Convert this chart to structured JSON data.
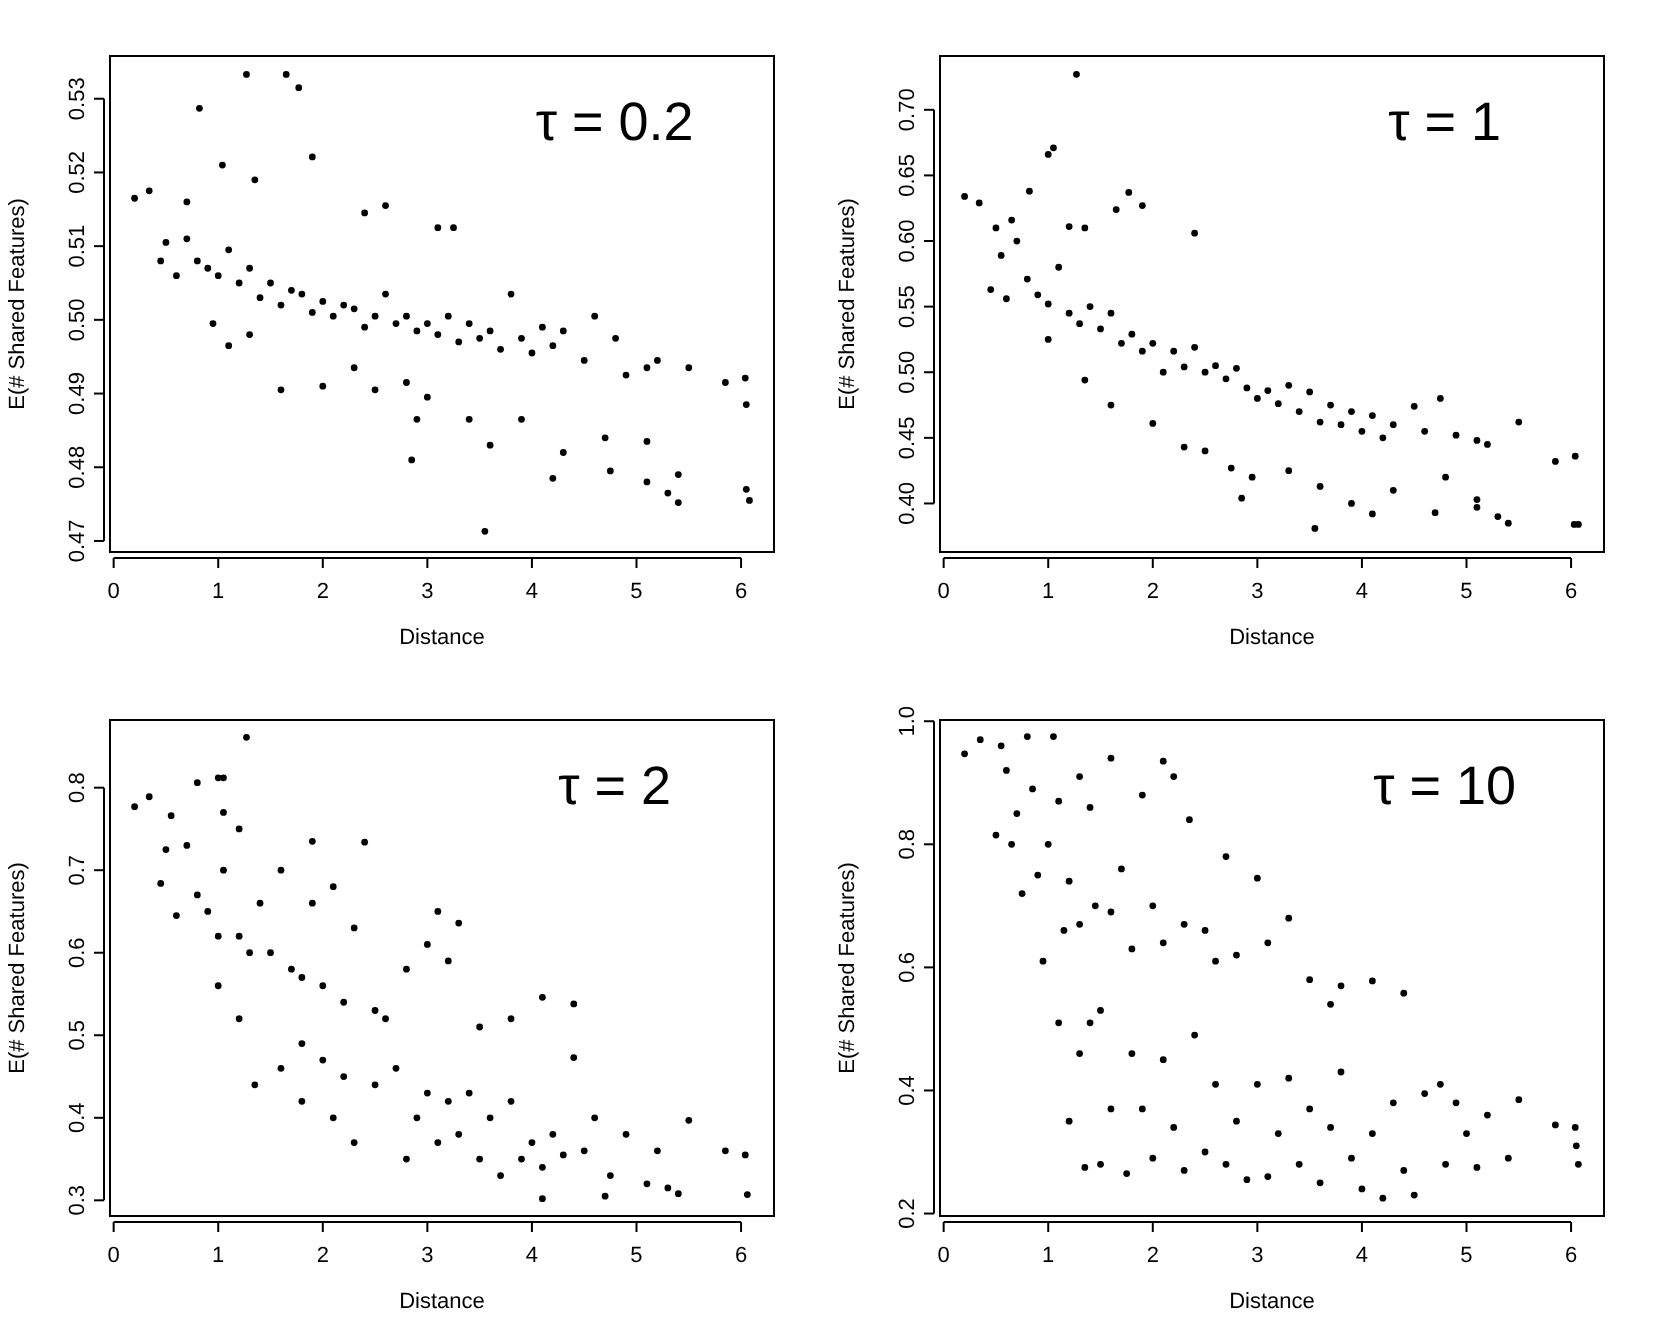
{
  "chart_data": [
    {
      "type": "scatter",
      "title": "τ = 0.2",
      "xlabel": "Distance",
      "ylabel": "E(# Shared Features)",
      "xlim": [
        -0.035,
        6.315
      ],
      "ylim": [
        0.4685,
        0.5358
      ],
      "xticks": [
        0,
        1,
        2,
        3,
        4,
        5,
        6
      ],
      "yticks": [
        {
          "value": 0.47,
          "label": "0.47"
        },
        {
          "value": 0.48,
          "label": "0.48"
        },
        {
          "value": 0.49,
          "label": "0.49"
        },
        {
          "value": 0.5,
          "label": "0.50"
        },
        {
          "value": 0.51,
          "label": "0.51"
        },
        {
          "value": 0.52,
          "label": "0.52"
        },
        {
          "value": 0.53,
          "label": "0.53"
        }
      ],
      "marker": "circle",
      "series": [
        {
          "color": "#000000",
          "x": [
            1.27,
            1.65,
            1.77,
            0.82,
            1.9,
            1.04,
            0.2,
            0.34,
            0.7,
            1.35,
            2.4,
            2.6,
            3.1,
            3.25,
            0.45,
            0.5,
            0.6,
            0.7,
            0.8,
            0.9,
            1.0,
            1.1,
            1.2,
            1.3,
            1.4,
            1.5,
            1.6,
            1.7,
            1.8,
            1.9,
            2.0,
            2.1,
            2.2,
            2.3,
            2.4,
            2.5,
            2.6,
            2.7,
            2.8,
            2.9,
            3.0,
            3.1,
            3.2,
            3.3,
            3.4,
            3.5,
            3.6,
            3.7,
            3.8,
            3.9,
            4.0,
            4.1,
            4.2,
            4.3,
            4.5,
            4.6,
            4.8,
            4.9,
            5.1,
            5.2,
            5.5,
            0.95,
            1.1,
            1.3,
            1.6,
            2.0,
            2.3,
            2.5,
            2.8,
            2.9,
            3.0,
            3.4,
            2.85,
            3.6,
            3.55,
            3.9,
            4.2,
            4.3,
            4.7,
            4.75,
            5.1,
            5.1,
            5.3,
            5.4,
            5.4,
            5.85,
            6.04,
            6.05,
            6.05,
            6.08
          ],
          "values": [
            0.5333,
            0.5333,
            0.5315,
            0.5287,
            0.5221,
            0.521,
            0.5165,
            0.5175,
            0.516,
            0.519,
            0.5145,
            0.5155,
            0.5125,
            0.5125,
            0.508,
            0.5105,
            0.506,
            0.511,
            0.508,
            0.507,
            0.506,
            0.5095,
            0.505,
            0.507,
            0.503,
            0.505,
            0.502,
            0.504,
            0.5035,
            0.501,
            0.5025,
            0.5005,
            0.502,
            0.5015,
            0.499,
            0.5005,
            0.5035,
            0.4995,
            0.5005,
            0.4985,
            0.4995,
            0.498,
            0.5005,
            0.497,
            0.4995,
            0.4975,
            0.4985,
            0.496,
            0.5035,
            0.4975,
            0.4955,
            0.499,
            0.4965,
            0.4985,
            0.4945,
            0.5005,
            0.4975,
            0.4925,
            0.4935,
            0.4945,
            0.4935,
            0.4995,
            0.4965,
            0.498,
            0.4905,
            0.491,
            0.4935,
            0.4905,
            0.4915,
            0.4865,
            0.4895,
            0.4865,
            0.481,
            0.483,
            0.4713,
            0.4865,
            0.4785,
            0.482,
            0.484,
            0.4795,
            0.478,
            0.4835,
            0.4765,
            0.4752,
            0.479,
            0.4915,
            0.4921,
            0.4885,
            0.477,
            0.4755
          ]
        }
      ]
    },
    {
      "type": "scatter",
      "title": "τ = 1",
      "xlabel": "Distance",
      "ylabel": "E(# Shared Features)",
      "xlim": [
        -0.035,
        6.315
      ],
      "ylim": [
        0.363,
        0.741
      ],
      "xticks": [
        0,
        1,
        2,
        3,
        4,
        5,
        6
      ],
      "yticks": [
        {
          "value": 0.4,
          "label": "0.40"
        },
        {
          "value": 0.45,
          "label": "0.45"
        },
        {
          "value": 0.5,
          "label": "0.50"
        },
        {
          "value": 0.55,
          "label": "0.55"
        },
        {
          "value": 0.6,
          "label": "0.60"
        },
        {
          "value": 0.65,
          "label": "0.65"
        },
        {
          "value": 0.7,
          "label": "0.70"
        }
      ],
      "marker": "circle",
      "series": [
        {
          "color": "#000000",
          "x": [
            1.27,
            1.0,
            1.05,
            0.2,
            0.34,
            0.82,
            1.65,
            1.77,
            1.9,
            2.4,
            1.2,
            1.35,
            0.45,
            0.5,
            0.55,
            0.6,
            0.65,
            0.7,
            0.8,
            0.9,
            1.0,
            1.0,
            1.1,
            1.2,
            1.3,
            1.4,
            1.5,
            1.6,
            1.7,
            1.8,
            1.9,
            2.0,
            2.1,
            2.2,
            2.3,
            2.4,
            2.5,
            2.6,
            2.7,
            2.8,
            2.9,
            3.0,
            3.1,
            3.2,
            3.3,
            3.4,
            3.5,
            3.6,
            3.7,
            3.8,
            3.9,
            4.0,
            4.1,
            4.2,
            4.3,
            4.5,
            4.6,
            4.75,
            4.9,
            5.1,
            5.2,
            5.5,
            1.35,
            1.6,
            2.0,
            2.3,
            2.5,
            2.75,
            2.85,
            2.95,
            3.3,
            3.6,
            3.55,
            3.9,
            4.1,
            4.3,
            4.7,
            4.8,
            5.1,
            5.1,
            5.3,
            5.4,
            5.85,
            6.04,
            6.03,
            6.07
          ],
          "values": [
            0.727,
            0.666,
            0.671,
            0.634,
            0.629,
            0.638,
            0.624,
            0.637,
            0.627,
            0.606,
            0.611,
            0.61,
            0.563,
            0.61,
            0.589,
            0.556,
            0.616,
            0.6,
            0.571,
            0.559,
            0.552,
            0.525,
            0.58,
            0.545,
            0.537,
            0.55,
            0.533,
            0.545,
            0.522,
            0.529,
            0.516,
            0.522,
            0.5,
            0.516,
            0.504,
            0.519,
            0.5,
            0.505,
            0.495,
            0.503,
            0.488,
            0.48,
            0.486,
            0.476,
            0.49,
            0.47,
            0.485,
            0.462,
            0.475,
            0.46,
            0.47,
            0.455,
            0.467,
            0.45,
            0.46,
            0.474,
            0.455,
            0.48,
            0.452,
            0.448,
            0.445,
            0.462,
            0.494,
            0.475,
            0.461,
            0.443,
            0.44,
            0.427,
            0.404,
            0.42,
            0.425,
            0.413,
            0.381,
            0.4,
            0.392,
            0.41,
            0.393,
            0.42,
            0.403,
            0.397,
            0.39,
            0.385,
            0.432,
            0.436,
            0.384,
            0.384
          ]
        }
      ]
    },
    {
      "type": "scatter",
      "title": "τ = 2",
      "xlabel": "Distance",
      "ylabel": "E(# Shared Features)",
      "xlim": [
        -0.035,
        6.315
      ],
      "ylim": [
        0.281,
        0.882
      ],
      "xticks": [
        0,
        1,
        2,
        3,
        4,
        5,
        6
      ],
      "yticks": [
        0.3,
        0.4,
        0.5,
        0.6,
        0.7,
        0.8
      ],
      "marker": "circle",
      "series": [
        {
          "color": "#000000",
          "x": [
            1.27,
            0.8,
            1.0,
            1.05,
            0.2,
            0.34,
            1.05,
            1.9,
            2.4,
            1.2,
            0.45,
            0.5,
            0.55,
            0.6,
            0.7,
            0.8,
            0.9,
            1.0,
            1.05,
            1.2,
            1.3,
            1.4,
            1.5,
            1.6,
            1.7,
            1.8,
            1.9,
            2.0,
            2.1,
            2.2,
            2.3,
            2.5,
            2.6,
            2.8,
            3.0,
            3.1,
            3.2,
            3.3,
            3.5,
            3.8,
            4.1,
            4.4,
            4.4,
            1.0,
            1.2,
            1.35,
            1.6,
            1.8,
            1.8,
            2.0,
            2.1,
            2.2,
            2.3,
            2.5,
            2.7,
            2.8,
            2.9,
            3.0,
            3.1,
            3.2,
            3.3,
            3.4,
            3.5,
            3.6,
            3.7,
            3.8,
            3.9,
            4.0,
            4.1,
            4.1,
            4.2,
            4.3,
            4.5,
            4.6,
            4.7,
            4.75,
            4.9,
            5.1,
            5.2,
            5.3,
            5.4,
            5.5,
            5.85,
            6.04,
            6.06
          ],
          "values": [
            0.861,
            0.806,
            0.812,
            0.812,
            0.777,
            0.789,
            0.77,
            0.735,
            0.734,
            0.75,
            0.684,
            0.725,
            0.766,
            0.645,
            0.73,
            0.67,
            0.65,
            0.62,
            0.7,
            0.62,
            0.6,
            0.66,
            0.6,
            0.7,
            0.58,
            0.57,
            0.66,
            0.56,
            0.68,
            0.54,
            0.63,
            0.53,
            0.52,
            0.58,
            0.61,
            0.65,
            0.59,
            0.636,
            0.51,
            0.52,
            0.546,
            0.538,
            0.473,
            0.56,
            0.52,
            0.44,
            0.46,
            0.49,
            0.42,
            0.47,
            0.4,
            0.45,
            0.37,
            0.44,
            0.46,
            0.35,
            0.4,
            0.43,
            0.37,
            0.42,
            0.38,
            0.43,
            0.35,
            0.4,
            0.33,
            0.42,
            0.35,
            0.37,
            0.34,
            0.302,
            0.38,
            0.355,
            0.36,
            0.4,
            0.305,
            0.33,
            0.38,
            0.32,
            0.36,
            0.315,
            0.308,
            0.397,
            0.36,
            0.355,
            0.307
          ]
        }
      ]
    },
    {
      "type": "scatter",
      "title": "τ = 10",
      "xlabel": "Distance",
      "ylabel": "E(# Shared Features)",
      "xlim": [
        -0.035,
        6.315
      ],
      "ylim": [
        0.196,
        1.002
      ],
      "xticks": [
        0,
        1,
        2,
        3,
        4,
        5,
        6
      ],
      "yticks": [
        0.2,
        0.4,
        0.6,
        0.8,
        {
          "value": 1,
          "label": "1.0"
        }
      ],
      "marker": "circle",
      "series": [
        {
          "color": "#000000",
          "x": [
            0.2,
            0.35,
            0.5,
            0.55,
            0.6,
            0.65,
            0.7,
            0.75,
            0.8,
            0.85,
            0.9,
            0.95,
            1.0,
            1.05,
            1.1,
            1.15,
            1.2,
            1.3,
            1.3,
            1.4,
            1.45,
            1.5,
            1.6,
            1.6,
            1.7,
            1.8,
            1.9,
            2.0,
            2.1,
            2.1,
            2.2,
            2.3,
            2.35,
            2.5,
            2.6,
            2.7,
            2.8,
            3.0,
            3.1,
            3.3,
            3.5,
            3.7,
            3.8,
            4.1,
            4.4,
            1.1,
            1.2,
            1.3,
            1.35,
            1.4,
            1.5,
            1.6,
            1.8,
            1.75,
            1.9,
            2.0,
            2.1,
            2.2,
            2.3,
            2.4,
            2.5,
            2.6,
            2.7,
            2.8,
            2.9,
            3.0,
            3.1,
            3.2,
            3.3,
            3.4,
            3.5,
            3.6,
            3.7,
            3.8,
            3.9,
            4.0,
            4.1,
            4.2,
            4.3,
            4.4,
            4.5,
            4.6,
            4.75,
            4.8,
            4.9,
            5.0,
            5.1,
            5.2,
            5.4,
            5.5,
            5.85,
            6.04,
            6.05,
            6.07
          ],
          "values": [
            0.947,
            0.97,
            0.815,
            0.96,
            0.92,
            0.8,
            0.85,
            0.72,
            0.975,
            0.89,
            0.75,
            0.61,
            0.8,
            0.975,
            0.87,
            0.66,
            0.74,
            0.91,
            0.67,
            0.86,
            0.7,
            0.53,
            0.94,
            0.69,
            0.76,
            0.63,
            0.88,
            0.7,
            0.935,
            0.64,
            0.91,
            0.67,
            0.84,
            0.66,
            0.61,
            0.78,
            0.62,
            0.745,
            0.64,
            0.68,
            0.58,
            0.54,
            0.57,
            0.578,
            0.558,
            0.51,
            0.35,
            0.46,
            0.275,
            0.51,
            0.28,
            0.37,
            0.46,
            0.265,
            0.37,
            0.29,
            0.45,
            0.34,
            0.27,
            0.49,
            0.3,
            0.41,
            0.28,
            0.35,
            0.255,
            0.41,
            0.26,
            0.33,
            0.42,
            0.28,
            0.37,
            0.25,
            0.34,
            0.43,
            0.29,
            0.24,
            0.33,
            0.225,
            0.38,
            0.27,
            0.23,
            0.395,
            0.41,
            0.28,
            0.38,
            0.33,
            0.275,
            0.36,
            0.29,
            0.385,
            0.344,
            0.34,
            0.31,
            0.28
          ]
        }
      ]
    }
  ]
}
